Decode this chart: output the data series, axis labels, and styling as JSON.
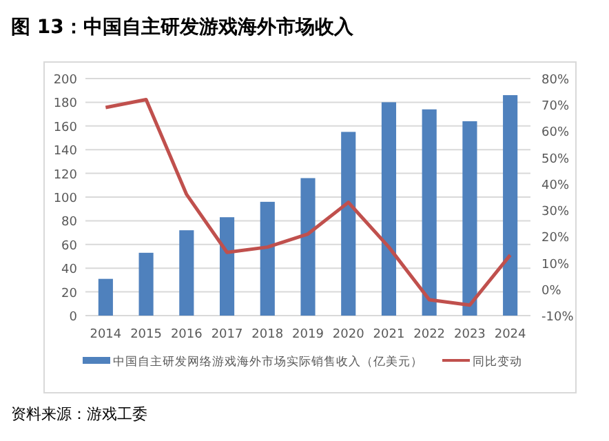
{
  "chart_data": {
    "type": "bar",
    "title": "图 13：中国自主研发游戏海外市场收入",
    "categories": [
      "2014",
      "2015",
      "2016",
      "2017",
      "2018",
      "2019",
      "2020",
      "2021",
      "2022",
      "2023",
      "2024"
    ],
    "series": [
      {
        "name": "中国自主研发网络游戏海外市场实际销售收入（亿美元）",
        "color": "#4f81bd",
        "values": [
          31,
          53,
          72,
          83,
          96,
          116,
          155,
          180,
          174,
          164,
          186
        ]
      },
      {
        "name": "同比变动",
        "type": "line",
        "axis": "y2",
        "color": "#c0504d",
        "values": [
          69,
          72,
          36,
          14,
          16,
          21,
          33,
          16,
          -4,
          -6,
          13
        ]
      }
    ],
    "ylim": [
      0,
      200
    ],
    "yticks": [
      0,
      20,
      40,
      60,
      80,
      100,
      120,
      140,
      160,
      180,
      200
    ],
    "y2lim": [
      -10,
      80
    ],
    "y2ticks": [
      {
        "value": -10,
        "label": "-10%"
      },
      {
        "value": 0,
        "label": "0%"
      },
      {
        "value": 10,
        "label": "10%"
      },
      {
        "value": 20,
        "label": "20%"
      },
      {
        "value": 30,
        "label": "30%"
      },
      {
        "value": 40,
        "label": "40%"
      },
      {
        "value": 50,
        "label": "50%"
      },
      {
        "value": 60,
        "label": "60%"
      },
      {
        "value": 70,
        "label": "70%"
      },
      {
        "value": 80,
        "label": "80%"
      }
    ],
    "grid": "y",
    "legend": "bottom",
    "marker": "none",
    "line_style": "solid",
    "annotations": [
      "资料来源：游戏工委"
    ]
  }
}
